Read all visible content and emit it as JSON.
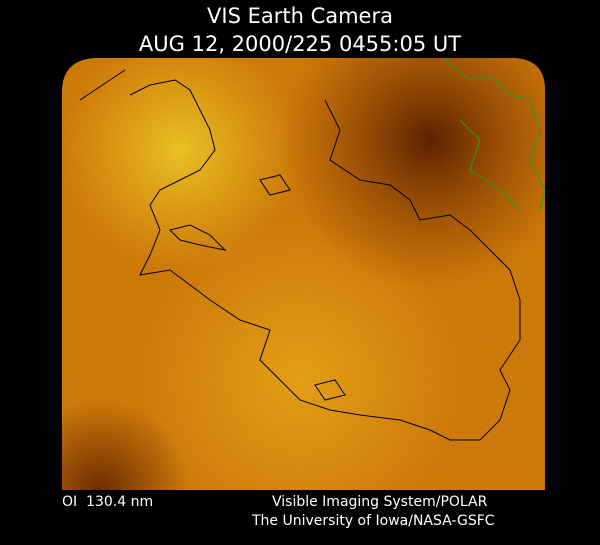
{
  "header": {
    "title": "VIS Earth Camera",
    "timestamp": "AUG 12, 2000/225 0455:05 UT"
  },
  "footer": {
    "filter": "OI  130.4 nm",
    "instrument": "Visible Imaging System/POLAR",
    "institution": "The University of Iowa/NASA-GSFC"
  }
}
